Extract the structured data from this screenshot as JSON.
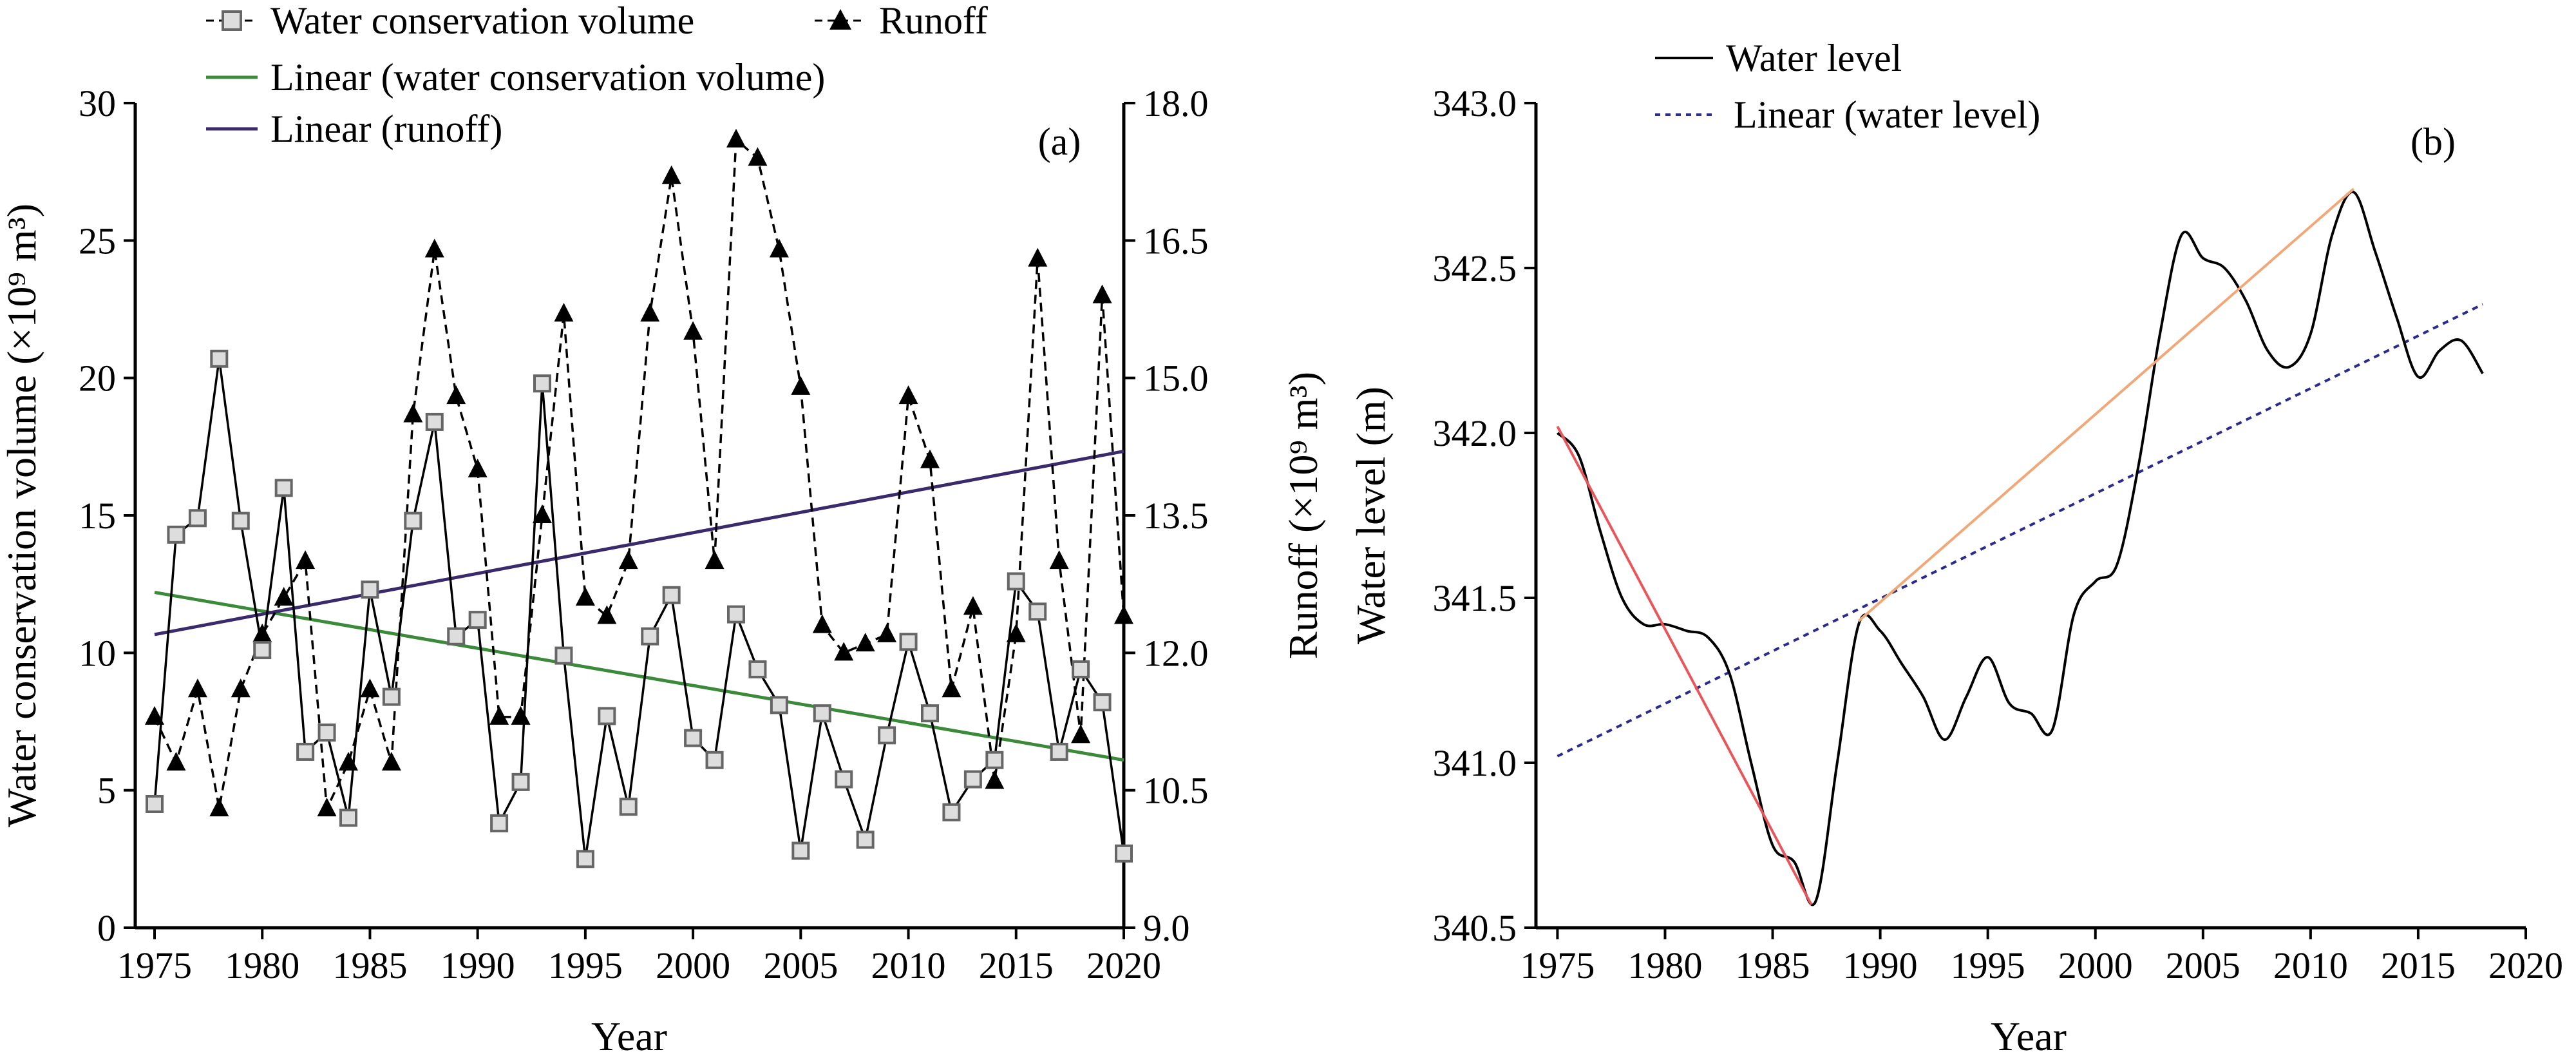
{
  "chart_data": [
    {
      "type": "line",
      "panel_label": "(a)",
      "xlabel": "Year",
      "ylabel_left": "Water conservation volume (×10⁹ m³)",
      "ylabel_right": "Runoff (×10⁹ m³)",
      "xlim": [
        1975,
        2020
      ],
      "ylim_left": [
        0,
        30
      ],
      "ylim_right": [
        9.0,
        18.0
      ],
      "x_ticks": [
        "1975",
        "1980",
        "1985",
        "1990",
        "1995",
        "2000",
        "2005",
        "2010",
        "2015",
        "2020"
      ],
      "y_left_ticks": [
        "0",
        "5",
        "10",
        "15",
        "20",
        "25",
        "30"
      ],
      "y_right_ticks": [
        "9.0",
        "10.5",
        "12.0",
        "13.5",
        "15.0",
        "16.5",
        "18.0"
      ],
      "grid": false,
      "legend_position": "top-left",
      "colors": {
        "water_conservation": "#000000",
        "runoff": "#000000",
        "linear_water_conservation": "#3a8a3a",
        "linear_runoff": "#3b2a6b",
        "marker_fill": "#dddddd",
        "marker_stroke": "#666666"
      },
      "legend": {
        "water_conservation": "Water conservation volume",
        "runoff": "Runoff",
        "linear_water_conservation": "Linear (water conservation volume)",
        "linear_runoff": "Linear (runoff)"
      },
      "x": [
        1975,
        1976,
        1977,
        1978,
        1979,
        1980,
        1981,
        1982,
        1983,
        1984,
        1985,
        1986,
        1987,
        1988,
        1989,
        1990,
        1991,
        1992,
        1993,
        1994,
        1995,
        1996,
        1997,
        1998,
        1999,
        2000,
        2001,
        2002,
        2003,
        2004,
        2005,
        2006,
        2007,
        2008,
        2009,
        2010,
        2011,
        2012,
        2013,
        2014,
        2015,
        2016,
        2017,
        2018,
        2019,
        2020
      ],
      "series": [
        {
          "name": "Water conservation volume",
          "axis": "left",
          "values": [
            4.5,
            14.3,
            14.9,
            20.7,
            14.8,
            10.1,
            16.0,
            6.4,
            7.1,
            4.0,
            12.3,
            8.4,
            14.8,
            18.4,
            10.6,
            11.2,
            3.8,
            5.3,
            19.8,
            9.9,
            2.5,
            7.7,
            4.4,
            10.6,
            12.1,
            6.9,
            6.1,
            11.4,
            9.4,
            8.1,
            2.8,
            7.8,
            5.4,
            3.2,
            7.0,
            10.4,
            7.8,
            4.2,
            5.4,
            6.1,
            12.6,
            11.5,
            6.4,
            9.4,
            8.2,
            2.7
          ]
        },
        {
          "name": "Runoff",
          "axis": "right",
          "values": [
            11.3,
            10.8,
            11.6,
            10.3,
            11.6,
            12.2,
            12.6,
            13.0,
            10.3,
            10.8,
            11.6,
            10.8,
            14.6,
            16.4,
            14.8,
            14.0,
            11.3,
            11.3,
            13.5,
            15.7,
            12.6,
            12.4,
            13.0,
            15.7,
            17.2,
            15.5,
            13.0,
            17.6,
            17.4,
            16.4,
            14.9,
            12.3,
            12.0,
            12.1,
            12.2,
            14.8,
            14.1,
            11.6,
            12.5,
            10.6,
            12.2,
            16.3,
            13.0,
            11.1,
            15.9,
            12.4
          ]
        },
        {
          "name": "Linear (water conservation volume)",
          "axis": "left",
          "type": "trend",
          "x": [
            1975,
            2020
          ],
          "values": [
            12.2,
            6.1
          ]
        },
        {
          "name": "Linear (runoff)",
          "axis": "right",
          "type": "trend",
          "x": [
            1975,
            2020
          ],
          "values": [
            12.2,
            14.2
          ]
        }
      ]
    },
    {
      "type": "line",
      "panel_label": "(b)",
      "xlabel": "Year",
      "ylabel": "Water level (m)",
      "xlim": [
        1974,
        2020
      ],
      "ylim": [
        340.5,
        343.0
      ],
      "x_ticks": [
        "1975",
        "1980",
        "1985",
        "1990",
        "1995",
        "2000",
        "2005",
        "2010",
        "2015",
        "2020"
      ],
      "y_ticks": [
        "340.5",
        "341.0",
        "341.5",
        "342.0",
        "342.5",
        "343.0"
      ],
      "grid": false,
      "legend_position": "top-left",
      "colors": {
        "water_level": "#000000",
        "linear_water_level": "#2b2b8f",
        "segment_decline": "#e8555a",
        "segment_rise": "#f0a878"
      },
      "legend": {
        "water_level": "Water level",
        "linear_water_level": "Linear (water level)"
      },
      "series": [
        {
          "name": "Water level",
          "x": [
            1975,
            1976,
            1977,
            1978,
            1979,
            1980,
            1981,
            1982,
            1983,
            1984,
            1985,
            1986,
            1987,
            1988,
            1989,
            1990,
            1991,
            1992,
            1993,
            1994,
            1995,
            1996,
            1997,
            1998,
            1999,
            2000,
            2001,
            2002,
            2003,
            2004,
            2005,
            2006,
            2007,
            2008,
            2009,
            2010,
            2011,
            2012,
            2013,
            2014,
            2015,
            2016,
            2017,
            2018
          ],
          "values": [
            342.0,
            341.93,
            341.7,
            341.5,
            341.42,
            341.42,
            341.4,
            341.38,
            341.27,
            341.0,
            340.75,
            340.7,
            340.58,
            341.0,
            341.42,
            341.4,
            341.3,
            341.2,
            341.07,
            341.2,
            341.32,
            341.18,
            341.15,
            341.1,
            341.45,
            341.55,
            341.6,
            341.9,
            342.3,
            342.6,
            342.53,
            342.5,
            342.4,
            342.25,
            342.2,
            342.3,
            342.6,
            342.73,
            342.55,
            342.35,
            342.17,
            342.25,
            342.28,
            342.18
          ]
        },
        {
          "name": "Linear (water level)",
          "type": "trend",
          "x": [
            1975,
            2018
          ],
          "values": [
            341.02,
            342.39
          ]
        },
        {
          "name": "",
          "type": "segment",
          "x": [
            1975,
            1986.8
          ],
          "values": [
            342.02,
            340.57
          ]
        },
        {
          "name": "",
          "type": "segment",
          "x": [
            1989,
            2012
          ],
          "values": [
            341.43,
            342.74
          ]
        }
      ]
    }
  ]
}
